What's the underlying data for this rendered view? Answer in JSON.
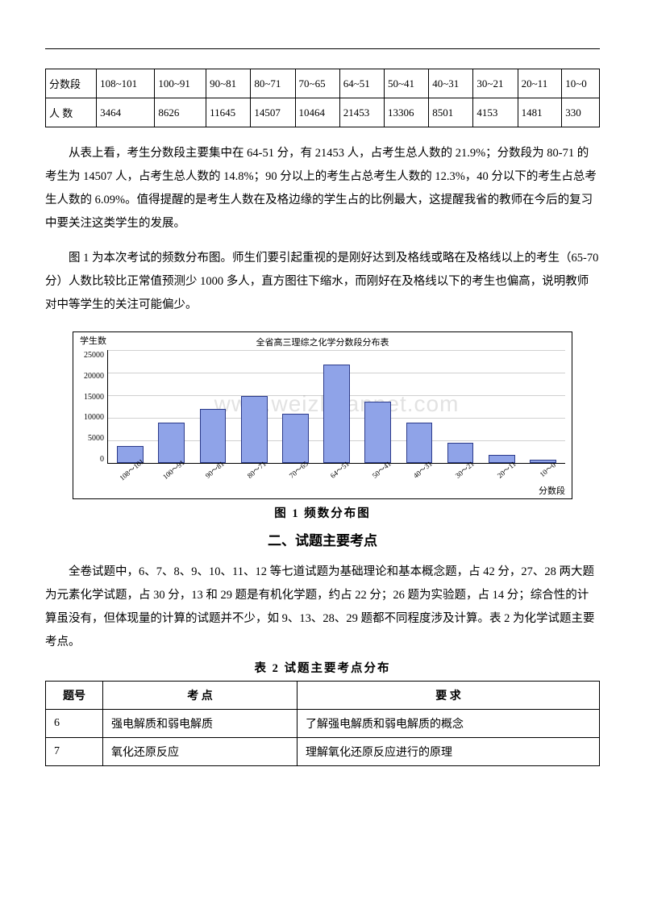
{
  "score_table": {
    "headers": [
      "分数段",
      "108~101",
      "100~91",
      "90~81",
      "80~71",
      "70~65",
      "64~51",
      "50~41",
      "40~31",
      "30~21",
      "20~11",
      "10~0"
    ],
    "row_label": "人  数",
    "values": [
      "3464",
      "8626",
      "11645",
      "14507",
      "10464",
      "21453",
      "13306",
      "8501",
      "4153",
      "1481",
      "330"
    ]
  },
  "paragraph1": "从表上看，考生分数段主要集中在 64-51 分，有 21453 人，占考生总人数的 21.9%；分数段为 80-71 的考生为 14507 人，占考生总人数的 14.8%；90 分以上的考生占总考生人数的 12.3%，40 分以下的考生占总考生人数的 6.09%。值得提醒的是考生人数在及格边缘的学生占的比例最大，这提醒我省的教师在今后的复习中要关注这类学生的发展。",
  "paragraph2": "图 1 为本次考试的频数分布图。师生们要引起重视的是刚好达到及格线或略在及格线以上的考生（65-70 分）人数比较比正常值预测少 1000 多人，直方图往下缩水，而刚好在及格线以下的考生也偏高，说明教师对中等学生的关注可能偏少。",
  "chart": {
    "type": "bar",
    "title": "全省高三理综之化学分数段分布表",
    "ylabel": "学生数",
    "xlabel": "分数段",
    "categories": [
      "108～101",
      "100～91",
      "90～81",
      "80～71",
      "70～65",
      "64～51",
      "50～41",
      "40～31",
      "30～21",
      "20～11",
      "10～0"
    ],
    "values": [
      3464,
      8626,
      11645,
      14507,
      10464,
      21453,
      13306,
      8501,
      4153,
      1481,
      330
    ],
    "ylim": [
      0,
      25000
    ],
    "ytick_step": 5000,
    "bar_fill": "#8fa3e8",
    "bar_border": "#2b3a8a",
    "grid_color": "#d0d0d0",
    "background": "#ffffff",
    "label_fontsize": 11
  },
  "caption_fig": "图 1    频数分布图",
  "section2_heading": "二、试题主要考点",
  "paragraph3": "全卷试题中，6、7、8、9、10、11、12 等七道试题为基础理论和基本概念题，占 42 分，27、28 两大题为元素化学试题，占 30 分，13 和 29 题是有机化学题，约占 22 分；26 题为实验题，占 14 分；综合性的计算虽没有，但体现量的计算的试题并不少，如 9、13、28、29 题都不同程度涉及计算。表 2 为化学试题主要考点。",
  "caption_tbl2": "表 2  试题主要考点分布",
  "topics_table": {
    "headers": [
      "题号",
      "考    点",
      "要        求"
    ],
    "rows": [
      [
        "6",
        "强电解质和弱电解质",
        "了解强电解质和弱电解质的概念"
      ],
      [
        "7",
        "氧化还原反应",
        "理解氧化还原反应进行的原理"
      ]
    ]
  },
  "watermark": "www.weizhuannet.com"
}
